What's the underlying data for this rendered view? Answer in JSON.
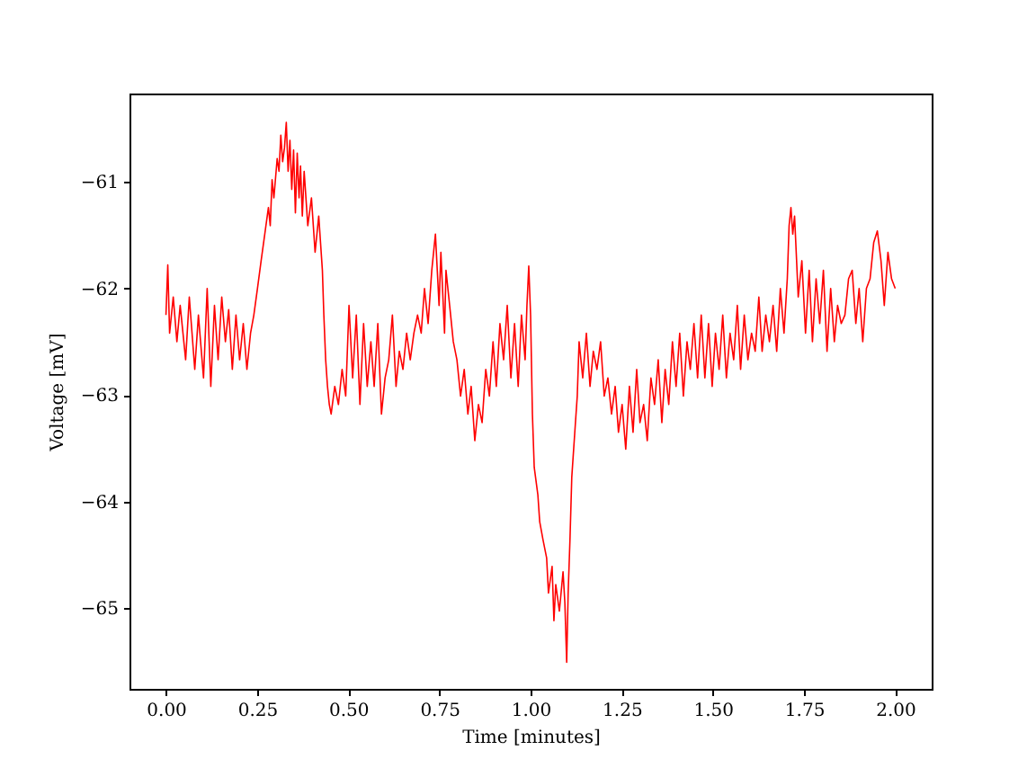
{
  "chart_data": {
    "type": "line",
    "xlabel": "Time [minutes]",
    "ylabel": "Voltage [mV]",
    "xlim": [
      -0.1,
      2.1
    ],
    "ylim": [
      -65.76,
      -60.17
    ],
    "xticks": [
      {
        "value": 0,
        "label": "0.00"
      },
      {
        "value": 0.25,
        "label": "0.25"
      },
      {
        "value": 0.5,
        "label": "0.50"
      },
      {
        "value": 0.75,
        "label": "0.75"
      },
      {
        "value": 1,
        "label": "1.00"
      },
      {
        "value": 1.25,
        "label": "1.25"
      },
      {
        "value": 1.5,
        "label": "1.50"
      },
      {
        "value": 1.75,
        "label": "1.75"
      },
      {
        "value": 2,
        "label": "2.00"
      }
    ],
    "yticks": [
      {
        "value": -65,
        "label": "−65"
      },
      {
        "value": -64,
        "label": "−64"
      },
      {
        "value": -63,
        "label": "−63"
      },
      {
        "value": -62,
        "label": "−62"
      },
      {
        "value": -61,
        "label": "−61"
      }
    ],
    "grid": false,
    "x": [
      0,
      0.005,
      0.01,
      0.02,
      0.03,
      0.039,
      0.054,
      0.064,
      0.079,
      0.089,
      0.103,
      0.113,
      0.123,
      0.133,
      0.143,
      0.153,
      0.163,
      0.172,
      0.182,
      0.192,
      0.202,
      0.212,
      0.222,
      0.232,
      0.241,
      0.251,
      0.261,
      0.271,
      0.281,
      0.286,
      0.291,
      0.296,
      0.305,
      0.31,
      0.315,
      0.32,
      0.325,
      0.33,
      0.335,
      0.34,
      0.345,
      0.35,
      0.355,
      0.36,
      0.365,
      0.369,
      0.374,
      0.379,
      0.389,
      0.399,
      0.409,
      0.419,
      0.429,
      0.433,
      0.438,
      0.443,
      0.448,
      0.453,
      0.463,
      0.473,
      0.483,
      0.493,
      0.502,
      0.512,
      0.522,
      0.532,
      0.542,
      0.552,
      0.562,
      0.571,
      0.581,
      0.591,
      0.601,
      0.611,
      0.621,
      0.631,
      0.64,
      0.65,
      0.66,
      0.67,
      0.68,
      0.69,
      0.7,
      0.709,
      0.719,
      0.729,
      0.739,
      0.749,
      0.754,
      0.764,
      0.768,
      0.778,
      0.788,
      0.798,
      0.808,
      0.818,
      0.828,
      0.837,
      0.847,
      0.857,
      0.867,
      0.877,
      0.887,
      0.897,
      0.906,
      0.916,
      0.926,
      0.936,
      0.946,
      0.956,
      0.966,
      0.975,
      0.985,
      0.99,
      0.995,
      1.0,
      1.005,
      1.01,
      1.02,
      1.025,
      1.034,
      1.044,
      1.049,
      1.059,
      1.064,
      1.069,
      1.079,
      1.089,
      1.094,
      1.099,
      1.103,
      1.108,
      1.113,
      1.123,
      1.128,
      1.133,
      1.143,
      1.153,
      1.163,
      1.172,
      1.182,
      1.192,
      1.202,
      1.212,
      1.222,
      1.232,
      1.241,
      1.251,
      1.261,
      1.271,
      1.281,
      1.291,
      1.3,
      1.31,
      1.32,
      1.33,
      1.34,
      1.35,
      1.36,
      1.369,
      1.379,
      1.389,
      1.399,
      1.409,
      1.419,
      1.429,
      1.438,
      1.448,
      1.458,
      1.468,
      1.478,
      1.488,
      1.498,
      1.507,
      1.517,
      1.527,
      1.537,
      1.547,
      1.557,
      1.567,
      1.576,
      1.586,
      1.596,
      1.606,
      1.616,
      1.626,
      1.635,
      1.645,
      1.655,
      1.665,
      1.675,
      1.685,
      1.695,
      1.704,
      1.709,
      1.714,
      1.719,
      1.724,
      1.734,
      1.744,
      1.754,
      1.764,
      1.773,
      1.783,
      1.793,
      1.803,
      1.813,
      1.823,
      1.833,
      1.842,
      1.852,
      1.862,
      1.872,
      1.882,
      1.892,
      1.901,
      1.911,
      1.921,
      1.931,
      1.941,
      1.951,
      1.961,
      1.97,
      1.98,
      1.99,
      2.0
    ],
    "series": [
      {
        "color": "#ff0000",
        "values": [
          -62.25,
          -61.78,
          -62.42,
          -62.08,
          -62.5,
          -62.16,
          -62.67,
          -62.08,
          -62.76,
          -62.25,
          -62.84,
          -62.0,
          -62.92,
          -62.16,
          -62.67,
          -62.08,
          -62.5,
          -62.2,
          -62.76,
          -62.25,
          -62.67,
          -62.33,
          -62.76,
          -62.42,
          -62.25,
          -62.0,
          -61.74,
          -61.49,
          -61.24,
          -61.41,
          -60.98,
          -61.15,
          -60.78,
          -60.9,
          -60.56,
          -60.81,
          -60.68,
          -60.44,
          -60.9,
          -60.61,
          -61.07,
          -60.7,
          -61.29,
          -60.73,
          -61.15,
          -60.85,
          -61.32,
          -60.9,
          -61.41,
          -61.15,
          -61.66,
          -61.32,
          -61.83,
          -62.25,
          -62.67,
          -62.92,
          -63.09,
          -63.18,
          -62.92,
          -63.09,
          -62.76,
          -63.01,
          -62.16,
          -62.84,
          -62.25,
          -63.09,
          -62.33,
          -62.92,
          -62.5,
          -62.92,
          -62.33,
          -63.18,
          -62.84,
          -62.67,
          -62.25,
          -62.92,
          -62.59,
          -62.76,
          -62.42,
          -62.67,
          -62.42,
          -62.25,
          -62.42,
          -62.0,
          -62.33,
          -61.83,
          -61.49,
          -62.16,
          -61.66,
          -62.42,
          -61.83,
          -62.16,
          -62.5,
          -62.67,
          -63.01,
          -62.76,
          -63.18,
          -62.92,
          -63.43,
          -63.09,
          -63.26,
          -62.76,
          -63.01,
          -62.5,
          -62.92,
          -62.33,
          -62.67,
          -62.16,
          -62.84,
          -62.33,
          -62.92,
          -62.25,
          -62.67,
          -62.16,
          -61.79,
          -62.25,
          -63.18,
          -63.68,
          -63.94,
          -64.19,
          -64.36,
          -64.53,
          -64.86,
          -64.61,
          -65.12,
          -64.78,
          -65.03,
          -64.66,
          -64.95,
          -65.51,
          -64.86,
          -64.36,
          -63.77,
          -63.26,
          -63.01,
          -62.5,
          -62.84,
          -62.42,
          -62.92,
          -62.59,
          -62.76,
          -62.5,
          -63.01,
          -62.84,
          -63.18,
          -62.92,
          -63.35,
          -63.09,
          -63.51,
          -62.92,
          -63.35,
          -62.76,
          -63.26,
          -63.09,
          -63.43,
          -62.84,
          -63.09,
          -62.67,
          -63.26,
          -62.76,
          -63.09,
          -62.5,
          -62.92,
          -62.42,
          -63.01,
          -62.5,
          -62.76,
          -62.33,
          -62.84,
          -62.25,
          -62.84,
          -62.33,
          -62.92,
          -62.42,
          -62.76,
          -62.25,
          -62.84,
          -62.42,
          -62.67,
          -62.16,
          -62.76,
          -62.25,
          -62.67,
          -62.42,
          -62.59,
          -62.08,
          -62.59,
          -62.25,
          -62.5,
          -62.16,
          -62.59,
          -62.0,
          -62.42,
          -61.91,
          -61.41,
          -61.24,
          -61.49,
          -61.32,
          -62.08,
          -61.74,
          -62.42,
          -61.83,
          -62.5,
          -61.91,
          -62.33,
          -61.83,
          -62.59,
          -62.0,
          -62.5,
          -62.16,
          -62.33,
          -62.25,
          -61.91,
          -61.83,
          -62.33,
          -62.0,
          -62.5,
          -62.0,
          -61.91,
          -61.57,
          -61.46,
          -61.74,
          -62.16,
          -61.66,
          -61.91,
          -62.0
        ]
      }
    ]
  }
}
